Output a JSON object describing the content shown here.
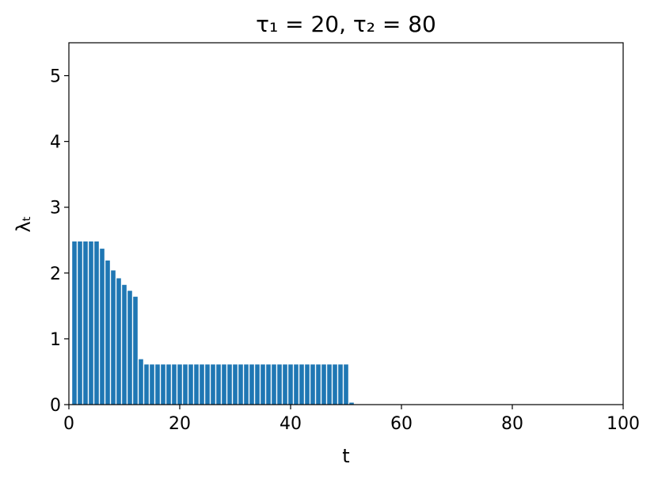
{
  "chart_data": {
    "type": "bar",
    "title": "τ₁ = 20, τ₂ = 80",
    "x_label": "t",
    "y_label": "λₜ",
    "x": [
      1,
      2,
      3,
      4,
      5,
      6,
      7,
      8,
      9,
      10,
      11,
      12,
      13,
      14,
      15,
      16,
      17,
      18,
      19,
      20,
      21,
      22,
      23,
      24,
      25,
      26,
      27,
      28,
      29,
      30,
      31,
      32,
      33,
      34,
      35,
      36,
      37,
      38,
      39,
      40,
      41,
      42,
      43,
      44,
      45,
      46,
      47,
      48,
      49,
      50,
      51
    ],
    "values": [
      2.48,
      2.48,
      2.48,
      2.48,
      2.48,
      2.37,
      2.19,
      2.04,
      1.92,
      1.82,
      1.73,
      1.64,
      0.69,
      0.61,
      0.61,
      0.61,
      0.61,
      0.61,
      0.61,
      0.61,
      0.61,
      0.61,
      0.61,
      0.61,
      0.61,
      0.61,
      0.61,
      0.61,
      0.61,
      0.61,
      0.61,
      0.61,
      0.61,
      0.61,
      0.61,
      0.61,
      0.61,
      0.61,
      0.61,
      0.61,
      0.61,
      0.61,
      0.61,
      0.61,
      0.61,
      0.61,
      0.61,
      0.61,
      0.61,
      0.61,
      0.03
    ],
    "color": "#1f77b4",
    "bar_width": 0.8,
    "xlim": [
      0,
      100
    ],
    "xticks": [
      0,
      20,
      40,
      60,
      80,
      100
    ],
    "ylim": [
      0,
      5.5
    ],
    "yticks": [
      0,
      1,
      2,
      3,
      4,
      5
    ]
  }
}
